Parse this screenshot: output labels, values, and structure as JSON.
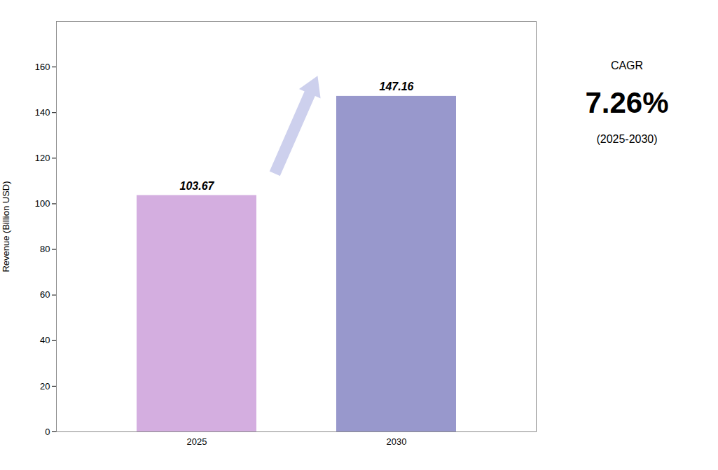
{
  "chart_data": {
    "type": "bar",
    "categories": [
      "2025",
      "2030"
    ],
    "values": [
      103.67,
      147.16
    ],
    "colors": [
      "#D4AEE0",
      "#9898CC"
    ],
    "ylabel": "Revenue (Billion USD)",
    "ylim": [
      0,
      180
    ],
    "yticks": [
      0,
      20,
      40,
      60,
      80,
      100,
      120,
      140,
      160
    ],
    "data_labels": true,
    "annotations": [
      "CAGR",
      "7.26%",
      "(2025-2030)"
    ]
  }
}
